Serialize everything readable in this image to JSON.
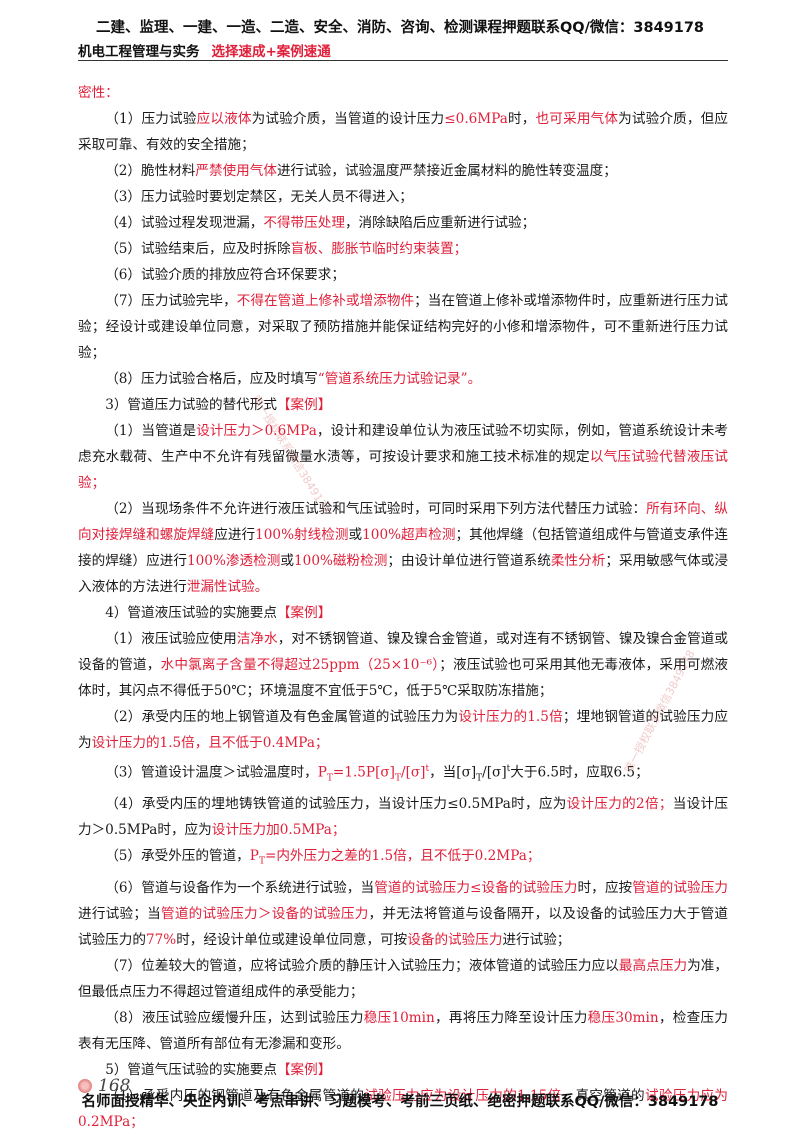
{
  "header": {
    "banner": "二建、监理、一建、一造、二造、安全、消防、咨询、检测课程押题联系QQ/微信：3849178",
    "book": "机电工程管理与实务",
    "tagline": "选择速成+案例速通"
  },
  "paragraphs": [
    [
      {
        "t": "密性：",
        "r": true
      }
    ],
    [
      {
        "t": "（1）压力试验"
      },
      {
        "t": "应以液体",
        "r": true
      },
      {
        "t": "为试验介质，当管道的设计压力"
      },
      {
        "t": "≤0.6MPa",
        "r": true
      },
      {
        "t": "时，"
      },
      {
        "t": "也可采用气体",
        "r": true
      },
      {
        "t": "为试验介质，但应采取可靠、有效的安全措施；"
      }
    ],
    [
      {
        "t": "（2）脆性材料"
      },
      {
        "t": "严禁使用气体",
        "r": true
      },
      {
        "t": "进行试验，试验温度严禁接近金属材料的脆性转变温度；"
      }
    ],
    [
      {
        "t": "（3）压力试验时要划定禁区，无关人员不得进入；"
      }
    ],
    [
      {
        "t": "（4）试验过程发现泄漏，"
      },
      {
        "t": "不得带压处理",
        "r": true
      },
      {
        "t": "，消除缺陷后应重新进行试验；"
      }
    ],
    [
      {
        "t": "（5）试验结束后，应及时拆除"
      },
      {
        "t": "盲板、膨胀节临时约束装置；",
        "r": true
      }
    ],
    [
      {
        "t": "（6）试验介质的排放应符合环保要求；"
      }
    ],
    [
      {
        "t": "（7）压力试验完毕，"
      },
      {
        "t": "不得在管道上修补或增添物件",
        "r": true
      },
      {
        "t": "；当在管道上修补或增添物件时，应重新进行压力试验；经设计或建设单位同意，对采取了预防措施并能保证结构完好的小修和增添物件，可不重新进行压力试验；"
      }
    ],
    [
      {
        "t": "（8）压力试验合格后，应及时填写"
      },
      {
        "t": "“管道系统压力试验记录”。",
        "r": true
      }
    ],
    [
      {
        "t": "3）管道压力试验的替代形式"
      },
      {
        "t": "【案例】",
        "r": true
      }
    ],
    [
      {
        "t": "（1）当管道是"
      },
      {
        "t": "设计压力＞0.6MPa",
        "r": true
      },
      {
        "t": "，设计和建设单位认为液压试验不切实际，例如，管道系统设计未考虑充水载荷、生产中不允许有残留微量水渍等，可按设计要求和施工技术标准的规定"
      },
      {
        "t": "以气压试验代替液压试验；",
        "r": true
      }
    ],
    [
      {
        "t": "（2）当现场条件不允许进行液压试验和气压试验时，可同时采用下列方法代替压力试验："
      },
      {
        "t": "所有环向、纵向对接焊缝和螺旋焊缝",
        "r": true
      },
      {
        "t": "应进行"
      },
      {
        "t": "100%射线检测",
        "r": true
      },
      {
        "t": "或"
      },
      {
        "t": "100%超声检测",
        "r": true
      },
      {
        "t": "；其他焊缝（包括管道组成件与管道支承件连接的焊缝）应进行"
      },
      {
        "t": "100%渗透检测",
        "r": true
      },
      {
        "t": "或"
      },
      {
        "t": "100%磁粉检测",
        "r": true
      },
      {
        "t": "；由设计单位进行管道系统"
      },
      {
        "t": "柔性分析",
        "r": true
      },
      {
        "t": "；采用敏感气体或浸入液体的方法进行"
      },
      {
        "t": "泄漏性试验。",
        "r": true
      }
    ],
    [
      {
        "t": "4）管道液压试验的实施要点"
      },
      {
        "t": "【案例】",
        "r": true
      }
    ],
    [
      {
        "t": "（1）液压试验应使用"
      },
      {
        "t": "洁净水",
        "r": true
      },
      {
        "t": "，对不锈钢管道、镍及镍合金管道，或对连有不锈钢管、镍及镍合金管道或设备的管道，"
      },
      {
        "t": "水中氯离子含量不得超过25ppm（25×10⁻⁶）",
        "r": true
      },
      {
        "t": "；液压试验也可采用其他无毒液体，采用可燃液体时，其闪点不得低于50℃；环境温度不宜低于5℃，低于5℃采取防冻措施；"
      }
    ],
    [
      {
        "t": "（2）承受内压的地上钢管道及有色金属管道的试验压力为"
      },
      {
        "t": "设计压力的1.5倍",
        "r": true
      },
      {
        "t": "；埋地钢管道的试验压力应为"
      },
      {
        "t": "设计压力的1.5倍，且不低于0.4MPa；",
        "r": true
      }
    ],
    [
      {
        "t": "（3）管道设计温度＞试验温度时，"
      },
      {
        "t": "P",
        "r": true
      },
      {
        "t": "T",
        "r": true,
        "sub": true
      },
      {
        "t": "=1.5P[σ]",
        "r": true
      },
      {
        "t": "T",
        "r": true,
        "sub": true
      },
      {
        "t": "/[σ]",
        "r": true
      },
      {
        "t": "t",
        "r": true,
        "sup": true
      },
      {
        "t": "，当[σ]"
      },
      {
        "t": "T",
        "sub": true
      },
      {
        "t": "/[σ]"
      },
      {
        "t": "t",
        "sup": true
      },
      {
        "t": "大于6.5时，应取6.5；"
      }
    ],
    [
      {
        "t": "（4）承受内压的埋地铸铁管道的试验压力，当设计压力≤0.5MPa时，应为"
      },
      {
        "t": "设计压力的2倍；",
        "r": true
      },
      {
        "t": "当设计压力＞0.5MPa时，应为"
      },
      {
        "t": "设计压力加0.5MPa；",
        "r": true
      }
    ],
    [
      {
        "t": "（5）承受外压的管道，"
      },
      {
        "t": "P",
        "r": true
      },
      {
        "t": "T",
        "r": true,
        "sub": true
      },
      {
        "t": "=内外压力之差的1.5倍，且不低于0.2MPa；",
        "r": true
      }
    ],
    [
      {
        "t": "（6）管道与设备作为一个系统进行试验，当"
      },
      {
        "t": "管道的试验压力≤设备的试验压力",
        "r": true
      },
      {
        "t": "时，应按"
      },
      {
        "t": "管道的试验压力",
        "r": true
      },
      {
        "t": "进行试验；当"
      },
      {
        "t": "管道的试验压力＞设备的试验压力",
        "r": true
      },
      {
        "t": "，并无法将管道与设备隔开，以及设备的试验压力大于管道试验压力的"
      },
      {
        "t": "77%",
        "r": true
      },
      {
        "t": "时，经设计单位或建设单位同意，可按"
      },
      {
        "t": "设备的试验压力",
        "r": true
      },
      {
        "t": "进行试验；"
      }
    ],
    [
      {
        "t": "（7）位差较大的管道，应将试验介质的静压计入试验压力；液体管道的试验压力应以"
      },
      {
        "t": "最高点压力",
        "r": true
      },
      {
        "t": "为准，但最低点压力不得超过管道组成件的承受能力；"
      }
    ],
    [
      {
        "t": "（8）液压试验应缓慢升压，达到试验压力"
      },
      {
        "t": "稳压10min",
        "r": true
      },
      {
        "t": "，再将压力降至设计压力"
      },
      {
        "t": "稳压30min",
        "r": true
      },
      {
        "t": "，检查压力表有无压降、管道所有部位有无渗漏和变形。"
      }
    ],
    [
      {
        "t": "5）管道气压试验的实施要点"
      },
      {
        "t": "【案例】",
        "r": true
      }
    ],
    [
      {
        "t": "（1）承受内压的钢管道及有色金属管道的"
      },
      {
        "t": "试验压力应为设计压力的1.15倍",
        "r": true
      },
      {
        "t": "，真空管道的"
      },
      {
        "t": "试验压力应为0.2MPa；",
        "r": true
      }
    ]
  ],
  "footer": {
    "page_number": "168",
    "banner": "名师面授精华、央企内训、考点串讲、习题模考、考前三页纸、绝密押题联系QQ/微信：3849178"
  },
  "watermarks": [
    "唯一授权联系微信3849178",
    "唯一授权联系微信3849178"
  ]
}
